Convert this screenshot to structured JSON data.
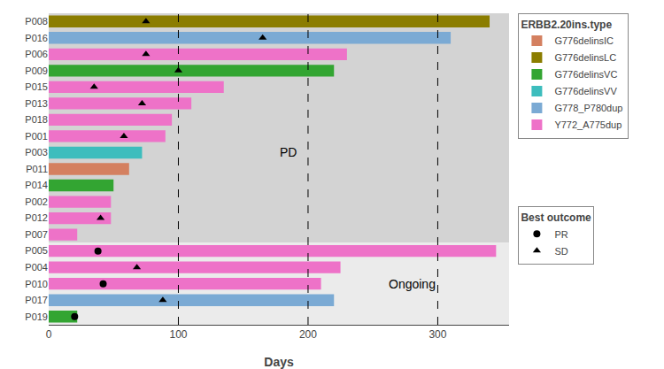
{
  "chart_data": {
    "type": "bar",
    "orientation": "horizontal",
    "xlabel": "Days",
    "categories": [
      "P008",
      "P016",
      "P006",
      "P009",
      "P015",
      "P013",
      "P018",
      "P001",
      "P003",
      "P011",
      "P014",
      "P002",
      "P012",
      "P007",
      "P005",
      "P004",
      "P010",
      "P017",
      "P019"
    ],
    "values": [
      340,
      310,
      230,
      220,
      135,
      110,
      95,
      90,
      72,
      62,
      50,
      48,
      48,
      22,
      345,
      225,
      210,
      220,
      22
    ],
    "colors": [
      "#8B7D00",
      "#7BAAD4",
      "#EE72C8",
      "#33A532",
      "#EE72C8",
      "#EE72C8",
      "#EE72C8",
      "#EE72C8",
      "#3DBDBD",
      "#D48060",
      "#33A532",
      "#EE72C8",
      "#EE72C8",
      "#EE72C8",
      "#EE72C8",
      "#EE72C8",
      "#EE72C8",
      "#7BAAD4",
      "#33A532"
    ],
    "xlim": [
      0,
      355
    ],
    "xticks": [
      0,
      100,
      200,
      300
    ],
    "grid": false,
    "reference_lines": [
      100,
      200,
      300
    ],
    "regions": [
      {
        "label": "PD",
        "from": "P008",
        "to": "P007",
        "color": "#D3D3D3",
        "label_x": 185,
        "label_category": "P003"
      },
      {
        "label": "Ongoing",
        "from": "P005",
        "to": "P019",
        "color": "#EBEBEB",
        "label_x": 280,
        "label_category": "P010"
      }
    ],
    "color_legend": {
      "title": "ERBB2.20ins.type",
      "names": [
        "G776delinsIC",
        "G776delinsLC",
        "G776delinsVC",
        "G776delinsVV",
        "G778_P780dup",
        "Y772_A775dup"
      ],
      "colors": [
        "#D48060",
        "#8B7D00",
        "#33A532",
        "#3DBDBD",
        "#7BAAD4",
        "#EE72C8"
      ]
    },
    "series_legend_title": "Best outcome",
    "series": [
      {
        "name": "PR",
        "type": "scatter",
        "marker": "circle",
        "color": "black",
        "values": [
          null,
          null,
          null,
          null,
          null,
          null,
          null,
          null,
          null,
          null,
          null,
          null,
          null,
          null,
          38,
          null,
          42,
          null,
          20
        ]
      },
      {
        "name": "SD",
        "type": "scatter",
        "marker": "triangle-up",
        "color": "black",
        "values": [
          75,
          165,
          75,
          100,
          35,
          72,
          null,
          58,
          null,
          null,
          null,
          null,
          40,
          null,
          null,
          68,
          null,
          88,
          null
        ]
      }
    ]
  }
}
